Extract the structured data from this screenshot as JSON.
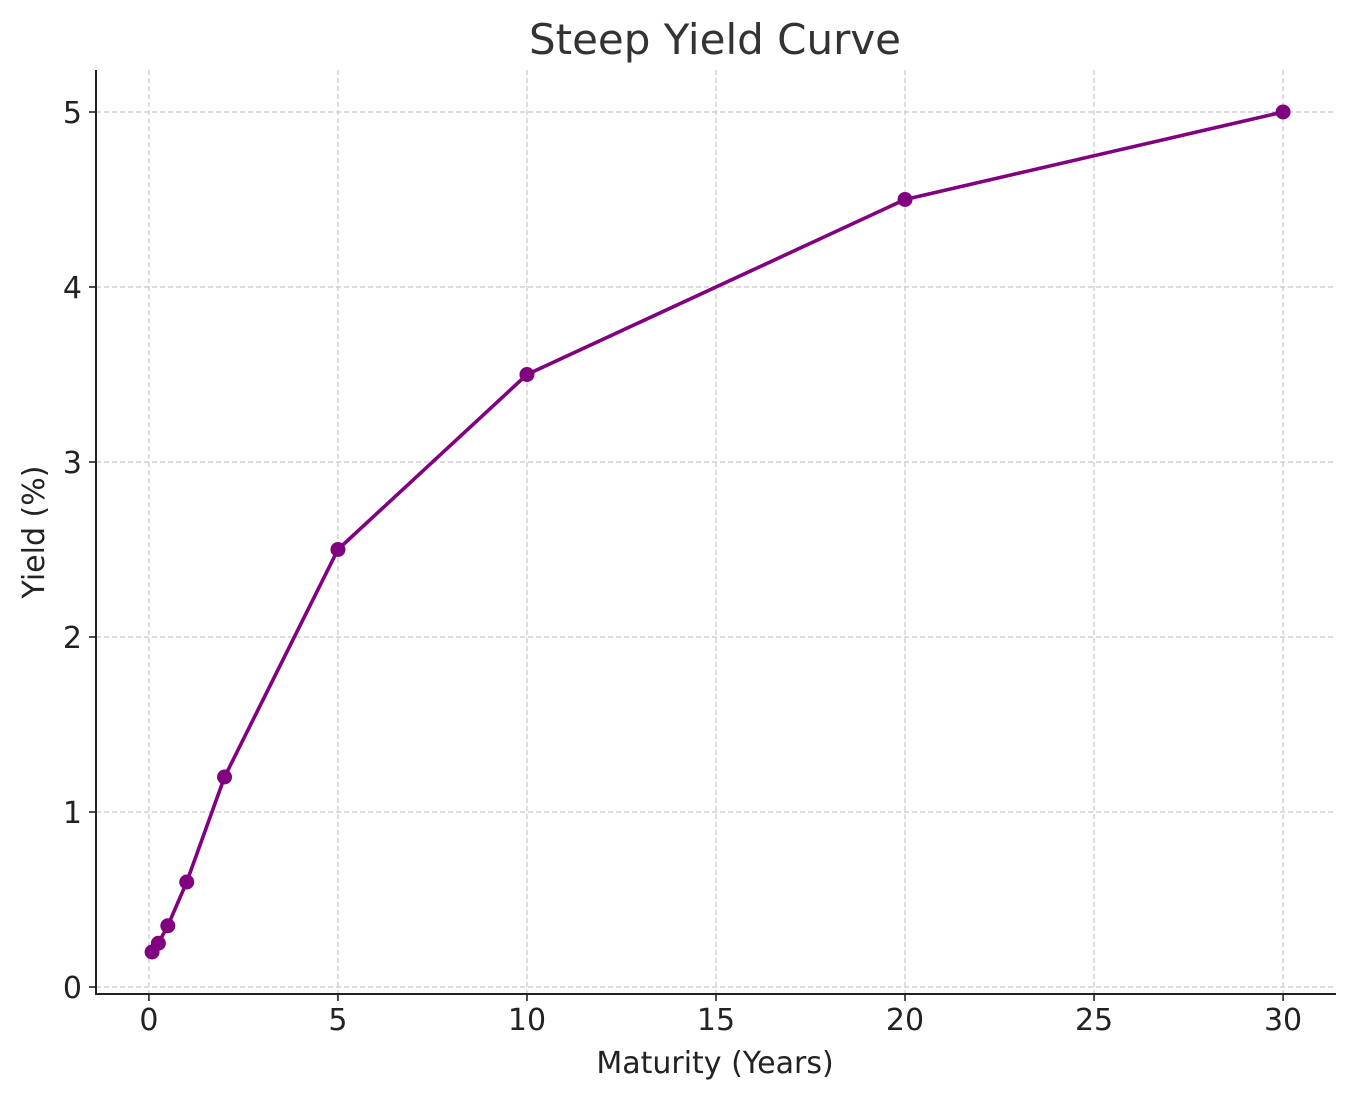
{
  "chart_data": {
    "type": "line",
    "title": "Steep Yield Curve",
    "xlabel": "Maturity (Years)",
    "ylabel": "Yield (%)",
    "xlim": [
      -1.4,
      31.4
    ],
    "ylim": [
      -0.04,
      5.24
    ],
    "xticks": [
      0,
      5,
      10,
      15,
      20,
      25,
      30
    ],
    "yticks": [
      0,
      1,
      2,
      3,
      4,
      5
    ],
    "grid": true,
    "color": "#800080",
    "series": [
      {
        "x": [
          0.0833,
          0.25,
          0.5,
          1,
          2,
          5,
          10,
          20,
          30
        ],
        "y": [
          0.2,
          0.25,
          0.35,
          0.6,
          1.2,
          2.5,
          3.5,
          4.5,
          5.0
        ]
      }
    ]
  }
}
